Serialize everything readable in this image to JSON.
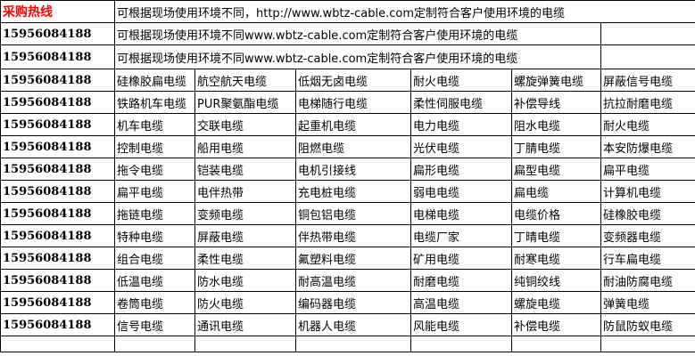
{
  "header": {
    "hotline_label": "采购热线",
    "banner": "可根据现场使用环境不同，http://www.wbtz-cable.com定制符合客户使用环境的电缆"
  },
  "intro_rows": [
    {
      "phone": "15956084188",
      "text": "可根据现场使用环境不同www.wbtz-cable.com定制符合客户使用环境的电缆"
    },
    {
      "phone": "15956084188",
      "text": "可根据现场使用环境不同www.wbtz-cable.com定制符合客户使用环境的电缆"
    }
  ],
  "rows": [
    {
      "phone": "15956084188",
      "cells": [
        "硅橡胶扁电缆",
        "航空航天电缆",
        "低烟无卤电缆",
        "耐火电缆",
        "螺旋弹簧电缆",
        "屏蔽信号电缆"
      ]
    },
    {
      "phone": "15956084188",
      "cells": [
        "铁路机车电缆",
        "PUR聚氨酯电缆",
        "电梯随行电缆",
        "柔性伺服电缆",
        "补偿导线",
        "抗拉耐磨电缆"
      ]
    },
    {
      "phone": "15956084188",
      "cells": [
        "机车电缆",
        "交联电缆",
        "起重机电缆",
        "电力电缆",
        "阻水电缆",
        "耐火电缆"
      ]
    },
    {
      "phone": "15956084188",
      "cells": [
        "控制电缆",
        "船用电缆",
        "阻燃电缆",
        "光伏电缆",
        "丁腈电缆",
        "本安防爆电缆"
      ]
    },
    {
      "phone": "15956084188",
      "cells": [
        "拖令电缆",
        "铠装电缆",
        "电机引接线",
        "扁形电缆",
        "扁型电缆",
        "扁平电缆"
      ]
    },
    {
      "phone": "15956084188",
      "cells": [
        "扁平电缆",
        "电伴热带",
        "充电桩电缆",
        "弱电电缆",
        "扁电缆",
        "计算机电缆"
      ]
    },
    {
      "phone": "15956084188",
      "cells": [
        "拖链电缆",
        "变频电缆",
        "铜包铝电缆",
        "电梯电缆",
        "电缆价格",
        "硅橡胶电缆"
      ]
    },
    {
      "phone": "15956084188",
      "cells": [
        "特种电缆",
        "屏蔽电缆",
        "伴热带电缆",
        "电缆厂家",
        "丁晴电缆",
        "变频器电缆"
      ]
    },
    {
      "phone": "15956084188",
      "cells": [
        "组合电缆",
        "柔性电缆",
        "氟塑料电缆",
        "矿用电缆",
        "耐寒电缆",
        "行车扁电缆"
      ]
    },
    {
      "phone": "15956084188",
      "cells": [
        "低温电缆",
        "防水电缆",
        "耐高温电缆",
        "耐磨电缆",
        "纯铜绞线",
        "耐油防腐电缆"
      ]
    },
    {
      "phone": "15956084188",
      "cells": [
        "卷筒电缆",
        "防火电缆",
        "编码器电缆",
        "高温电缆",
        "螺旋电缆",
        "弹簧电缆"
      ]
    },
    {
      "phone": "15956084188",
      "cells": [
        "信号电缆",
        "通讯电缆",
        "机器人电缆",
        "风能电缆",
        "补偿电缆",
        "防鼠防蚁电缆"
      ]
    }
  ],
  "colors": {
    "hotline": "#ff0000",
    "border": "#000000"
  }
}
